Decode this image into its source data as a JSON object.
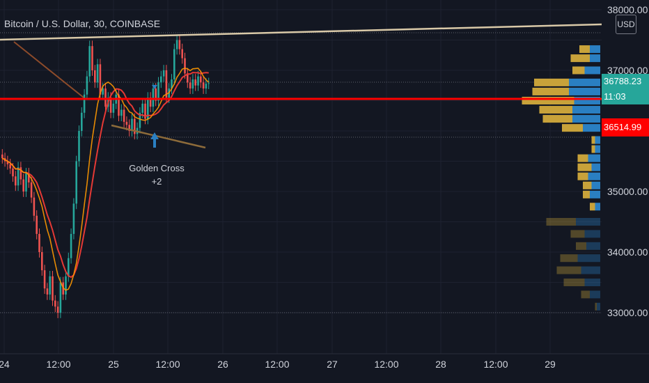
{
  "header": {
    "symbol_title": "Bitcoin / U.S. Dollar, 30, COINBASE",
    "currency_button": "USD"
  },
  "price_tags": {
    "last_price": "36788.23",
    "countdown": "11:03",
    "line_price": "36514.99"
  },
  "annotation": {
    "label": "Golden Cross",
    "count": "+2"
  },
  "colors": {
    "background": "#131722",
    "up_candle": "#26a69a",
    "down_candle": "#ef5350",
    "ma_fast": "#ff9800",
    "ma_slow": "#e53935",
    "trend_line": "#d9c9a8",
    "red_line": "#ff0000",
    "vp_gold": "#c8a23a",
    "vp_blue": "#2a7fc2",
    "last_price_tag": "#26a69a",
    "red_tag": "#ff0000"
  },
  "chart_data": {
    "type": "candlestick",
    "y_axis": {
      "ticks": [
        "38000.00",
        "37000.00",
        "35000.00",
        "34000.00",
        "33000.00"
      ],
      "tick_values": [
        38000,
        37000,
        35000,
        34000,
        33000
      ]
    },
    "x_axis": {
      "ticks": [
        "24",
        "12:00",
        "25",
        "12:00",
        "26",
        "12:00",
        "27",
        "12:00",
        "28",
        "12:00",
        "29"
      ]
    },
    "horizontal_line": 36514.99,
    "last_price": 36788.23,
    "candles_close": [
      35550,
      35500,
      35450,
      35380,
      35250,
      35100,
      35400,
      35200,
      35000,
      35300,
      35150,
      34900,
      34600,
      34300,
      34000,
      33700,
      33400,
      33300,
      33600,
      33200,
      33100,
      33000,
      33500,
      33300,
      33600,
      33900,
      34300,
      34800,
      35500,
      36000,
      36300,
      36600,
      36900,
      37400,
      37000,
      36800,
      37100,
      36600,
      36700,
      36400,
      36550,
      36300,
      36450,
      36600,
      36250,
      36350,
      36150,
      36100,
      36000,
      36200,
      35950,
      36050,
      36300,
      36450,
      36200,
      36550,
      36400,
      36700,
      36500,
      36800,
      36900,
      37000,
      36550,
      36700,
      36850,
      37350,
      37500,
      37350,
      37200,
      36950,
      36800,
      36700,
      36850,
      36750,
      36900,
      36800,
      36700,
      36780,
      36788
    ],
    "volume_profile": [
      {
        "price": 37350,
        "buy": 12,
        "sell": 12
      },
      {
        "price": 37200,
        "buy": 22,
        "sell": 12
      },
      {
        "price": 37000,
        "buy": 14,
        "sell": 18
      },
      {
        "price": 36800,
        "buy": 40,
        "sell": 36
      },
      {
        "price": 36650,
        "buy": 42,
        "sell": 36
      },
      {
        "price": 36500,
        "buy": 60,
        "sell": 30
      },
      {
        "price": 36350,
        "buy": 38,
        "sell": 32
      },
      {
        "price": 36200,
        "buy": 34,
        "sell": 32
      },
      {
        "price": 36050,
        "buy": 24,
        "sell": 20
      },
      {
        "price": 35850,
        "buy": 4,
        "sell": 6
      },
      {
        "price": 35700,
        "buy": 4,
        "sell": 6
      },
      {
        "price": 35550,
        "buy": 12,
        "sell": 14
      },
      {
        "price": 35400,
        "buy": 16,
        "sell": 10
      },
      {
        "price": 35250,
        "buy": 12,
        "sell": 14
      },
      {
        "price": 35100,
        "buy": 10,
        "sell": 10
      },
      {
        "price": 34950,
        "buy": 8,
        "sell": 12
      },
      {
        "price": 34750,
        "buy": 6,
        "sell": 6
      },
      {
        "price": 34500,
        "buy": 34,
        "sell": 28
      },
      {
        "price": 34300,
        "buy": 16,
        "sell": 18
      },
      {
        "price": 34100,
        "buy": 12,
        "sell": 16
      },
      {
        "price": 33900,
        "buy": 20,
        "sell": 26
      },
      {
        "price": 33700,
        "buy": 28,
        "sell": 22
      },
      {
        "price": 33500,
        "buy": 24,
        "sell": 18
      },
      {
        "price": 33300,
        "buy": 10,
        "sell": 12
      },
      {
        "price": 33100,
        "buy": 2,
        "sell": 4
      }
    ]
  }
}
